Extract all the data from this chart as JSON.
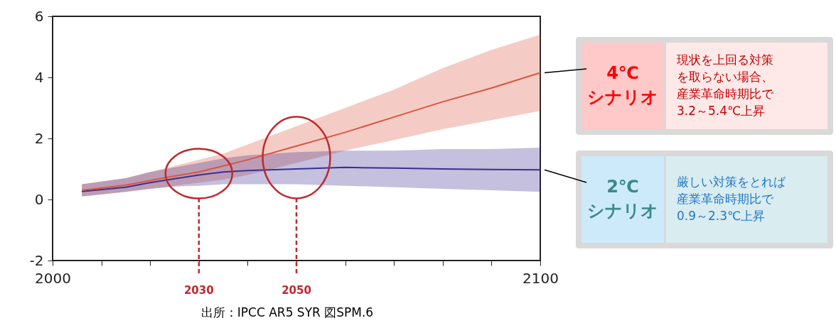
{
  "chart_data": {
    "type": "line",
    "x": [
      2006,
      2015,
      2020,
      2025,
      2030,
      2035,
      2040,
      2050,
      2060,
      2070,
      2080,
      2090,
      2100
    ],
    "series": [
      {
        "name": "4℃ シナリオ",
        "color": "#d9553f",
        "values": [
          0.3,
          0.47,
          0.62,
          0.77,
          0.9,
          1.1,
          1.3,
          1.75,
          2.2,
          2.7,
          3.2,
          3.65,
          4.15
        ],
        "lower": [
          0.1,
          0.25,
          0.35,
          0.45,
          0.55,
          0.65,
          0.8,
          1.2,
          1.6,
          1.95,
          2.3,
          2.6,
          2.9
        ],
        "upper": [
          0.5,
          0.7,
          0.9,
          1.1,
          1.3,
          1.5,
          1.8,
          2.4,
          3.0,
          3.6,
          4.3,
          4.9,
          5.4
        ]
      },
      {
        "name": "2℃ シナリオ",
        "color": "#3b2f8f",
        "values": [
          0.26,
          0.4,
          0.55,
          0.68,
          0.8,
          0.9,
          0.95,
          1.0,
          1.05,
          1.03,
          1.0,
          0.98,
          0.97
        ],
        "lower": [
          0.1,
          0.25,
          0.35,
          0.42,
          0.45,
          0.5,
          0.5,
          0.5,
          0.45,
          0.4,
          0.35,
          0.3,
          0.25
        ],
        "upper": [
          0.5,
          0.7,
          0.9,
          1.05,
          1.2,
          1.35,
          1.45,
          1.55,
          1.6,
          1.6,
          1.65,
          1.65,
          1.7
        ]
      }
    ],
    "xlim": [
      2000,
      2100
    ],
    "xticks": [
      2000,
      {
        "value": 2010,
        "label": null
      },
      {
        "value": 2020,
        "label": null
      },
      {
        "value": 2030,
        "label": null
      },
      {
        "value": 2040,
        "label": null
      },
      {
        "value": 2050,
        "label": null
      },
      {
        "value": 2060,
        "label": null
      },
      {
        "value": 2070,
        "label": null
      },
      {
        "value": 2080,
        "label": null
      },
      {
        "value": 2090,
        "label": null
      },
      2100
    ],
    "ylim": [
      -2,
      6
    ],
    "yticks": [
      -2,
      0,
      2,
      4,
      6
    ],
    "ref_lines": [
      {
        "axis": "x",
        "value": 2030,
        "label": "2030",
        "color": "#c0282d",
        "line_style": "dashed"
      },
      {
        "axis": "x",
        "value": 2050,
        "label": "2050",
        "color": "#c0282d",
        "line_style": "dashed"
      }
    ],
    "annotations": [
      "現状を上回る対策を取らない場合、産業革命時期比で3.2～5.4℃上昇",
      "厳しい対策をとれば産業革命時期比で0.9～2.3℃上昇",
      "出所：IPCC AR5 SYR 図SPM.6"
    ],
    "grid": false,
    "line_style": "solid",
    "marker": "none"
  }
}
